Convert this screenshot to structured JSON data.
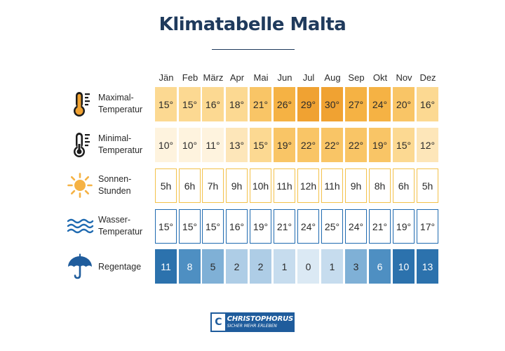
{
  "title": "Klimatabelle Malta",
  "months": [
    "Jän",
    "Feb",
    "März",
    "Apr",
    "Mai",
    "Jun",
    "Jul",
    "Aug",
    "Sep",
    "Okt",
    "Nov",
    "Dez"
  ],
  "rows": [
    {
      "label": "Maximal-\nTemperatur",
      "icon": "thermometer-hot-icon",
      "values": [
        "15°",
        "15°",
        "16°",
        "18°",
        "21°",
        "26°",
        "29°",
        "30°",
        "27°",
        "24°",
        "20°",
        "16°"
      ]
    },
    {
      "label": "Minimal-\nTemperatur",
      "icon": "thermometer-cold-icon",
      "values": [
        "10°",
        "10°",
        "11°",
        "13°",
        "15°",
        "19°",
        "22°",
        "22°",
        "22°",
        "19°",
        "15°",
        "12°"
      ]
    },
    {
      "label": "Sonnen-\nStunden",
      "icon": "sun-icon",
      "values": [
        "5h",
        "6h",
        "7h",
        "9h",
        "10h",
        "11h",
        "12h",
        "11h",
        "9h",
        "8h",
        "6h",
        "5h"
      ]
    },
    {
      "label": "Wasser-\nTemperatur",
      "icon": "waves-icon",
      "values": [
        "15°",
        "15°",
        "15°",
        "16°",
        "19°",
        "21°",
        "24°",
        "25°",
        "24°",
        "21°",
        "19°",
        "17°"
      ]
    },
    {
      "label": "Regentage",
      "icon": "umbrella-icon",
      "values": [
        "11",
        "8",
        "5",
        "2",
        "2",
        "1",
        "0",
        "1",
        "3",
        "6",
        "10",
        "13"
      ]
    }
  ],
  "chart_data": {
    "type": "table",
    "title": "Klimatabelle Malta",
    "categories": [
      "Jän",
      "Feb",
      "März",
      "Apr",
      "Mai",
      "Jun",
      "Jul",
      "Aug",
      "Sep",
      "Okt",
      "Nov",
      "Dez"
    ],
    "series": [
      {
        "name": "Maximal-Temperatur",
        "values": [
          15,
          15,
          16,
          18,
          21,
          26,
          29,
          30,
          27,
          24,
          20,
          16
        ]
      },
      {
        "name": "Minimal-Temperatur",
        "values": [
          10,
          10,
          11,
          13,
          15,
          19,
          22,
          22,
          22,
          19,
          15,
          12
        ]
      },
      {
        "name": "Sonnen-Stunden",
        "values": [
          5,
          6,
          7,
          9,
          10,
          11,
          12,
          11,
          9,
          8,
          6,
          5
        ]
      },
      {
        "name": "Wasser-Temperatur",
        "values": [
          15,
          15,
          15,
          16,
          19,
          21,
          24,
          25,
          24,
          21,
          19,
          17
        ]
      },
      {
        "name": "Regentage",
        "values": [
          11,
          8,
          5,
          2,
          2,
          1,
          0,
          1,
          3,
          6,
          10,
          13
        ]
      }
    ]
  },
  "colors": {
    "title": "#1f3a5c",
    "temp_scale": [
      "#fef3de",
      "#fde6b9",
      "#fcd992",
      "#f9c566",
      "#f5b244",
      "#f0a232"
    ],
    "sun_border": "#f3c14a",
    "water_border": "#1f6ab0",
    "rain_scale": [
      "#dbe9f4",
      "#c6dcee",
      "#aecde6",
      "#7fb0d6",
      "#4e8fc2",
      "#2c72ad"
    ]
  },
  "logo": {
    "name": "CHRISTOPHORUS",
    "tagline": "SICHER MEHR ERLEBEN"
  }
}
